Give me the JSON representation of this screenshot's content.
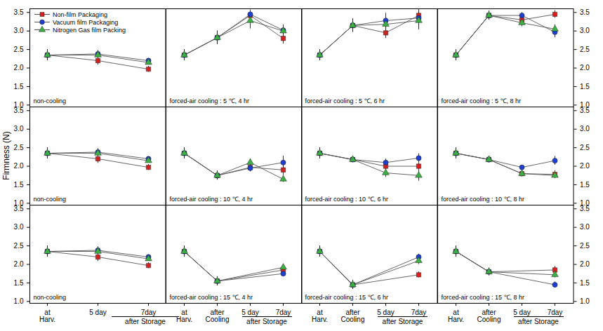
{
  "chart_data": [
    {
      "type": "line",
      "title": "non-cooling",
      "legend": "top-left",
      "tick_labels": "y",
      "x": [
        "at\nHarv.",
        "5 day",
        "7day"
      ],
      "ylim": [
        0.95,
        3.6
      ],
      "yticks": [
        {
          "value": 1,
          "label": "1.0"
        },
        1.5,
        {
          "value": 2,
          "label": "2.0"
        },
        2.5,
        {
          "value": 3,
          "label": "3.0"
        },
        3.5
      ],
      "series": [
        {
          "name": "Non-film Packaging",
          "color": "#d62020",
          "marker": "square",
          "values": [
            2.35,
            2.2,
            1.97
          ],
          "errors": [
            0.15,
            0.12,
            0.08
          ]
        },
        {
          "name": "Vacuum film Packaging",
          "color": "#1f3fd0",
          "marker": "circle",
          "values": [
            2.35,
            2.38,
            2.2
          ],
          "errors": [
            0.15,
            0.1,
            0.06
          ]
        },
        {
          "name": "Nitrogen Gas film Packing",
          "color": "#3cb043",
          "marker": "triangle",
          "values": [
            2.35,
            2.35,
            2.15
          ],
          "errors": [
            0.15,
            0.1,
            0.06
          ]
        }
      ]
    },
    {
      "type": "line",
      "title": "forced-air cooling : 5 ℃, 4 hr",
      "tick_labels": false,
      "x": [
        "at\nHarv.",
        "after\nCooling",
        "5 day",
        "7day"
      ],
      "ylim": [
        0.95,
        3.6
      ],
      "yticks": [
        {
          "value": 1,
          "label": "1.0"
        },
        1.5,
        {
          "value": 2,
          "label": "2.0"
        },
        2.5,
        {
          "value": 3,
          "label": "3.0"
        },
        3.5
      ],
      "series": [
        {
          "name": "Non-film Packaging",
          "color": "#d62020",
          "marker": "square",
          "values": [
            2.35,
            2.82,
            3.42,
            2.8
          ],
          "errors": [
            0.15,
            0.18,
            0.1,
            0.15
          ]
        },
        {
          "name": "Vacuum film Packaging",
          "color": "#1f3fd0",
          "marker": "circle",
          "values": [
            2.35,
            2.82,
            3.45,
            3.02
          ],
          "errors": [
            0.15,
            0.18,
            0.12,
            0.15
          ]
        },
        {
          "name": "Nitrogen Gas film Packing",
          "color": "#3cb043",
          "marker": "triangle",
          "values": [
            2.35,
            2.82,
            3.28,
            3.0
          ],
          "errors": [
            0.15,
            0.18,
            0.22,
            0.12
          ]
        }
      ]
    },
    {
      "type": "line",
      "title": "forced-air cooling : 5 ℃, 6 hr",
      "tick_labels": false,
      "x": [
        "at\nHarv.",
        "after\nCooling",
        "5 day",
        "7day"
      ],
      "ylim": [
        0.95,
        3.6
      ],
      "yticks": [
        {
          "value": 1,
          "label": "1.0"
        },
        1.5,
        {
          "value": 2,
          "label": "2.0"
        },
        2.5,
        {
          "value": 3,
          "label": "3.0"
        },
        3.5
      ],
      "series": [
        {
          "name": "Non-film Packaging",
          "color": "#d62020",
          "marker": "square",
          "values": [
            2.35,
            3.15,
            2.95,
            3.42
          ],
          "errors": [
            0.15,
            0.18,
            0.15,
            0.12
          ]
        },
        {
          "name": "Vacuum film Packaging",
          "color": "#1f3fd0",
          "marker": "circle",
          "values": [
            2.35,
            3.15,
            3.28,
            3.35
          ],
          "errors": [
            0.15,
            0.18,
            0.2,
            0.25
          ]
        },
        {
          "name": "Nitrogen Gas film Packing",
          "color": "#3cb043",
          "marker": "triangle",
          "values": [
            2.35,
            3.15,
            3.18,
            3.28
          ],
          "errors": [
            0.15,
            0.18,
            0.2,
            0.25
          ]
        }
      ]
    },
    {
      "type": "line",
      "title": "forced-air cooling : 5 ℃, 8 hr",
      "tick_labels": "y",
      "x": [
        "at\nHarv.",
        "after\nCooling",
        "5 day",
        "7day"
      ],
      "ylim": [
        0.95,
        3.6
      ],
      "yticks": [
        {
          "value": 1,
          "label": "1.0"
        },
        1.5,
        {
          "value": 2,
          "label": "2.0"
        },
        2.5,
        {
          "value": 3,
          "label": "3.0"
        },
        3.5
      ],
      "series": [
        {
          "name": "Non-film Packaging",
          "color": "#d62020",
          "marker": "square",
          "values": [
            2.35,
            3.42,
            3.3,
            3.45
          ],
          "errors": [
            0.15,
            0.12,
            0.12,
            0.1
          ]
        },
        {
          "name": "Vacuum film Packaging",
          "color": "#1f3fd0",
          "marker": "circle",
          "values": [
            2.35,
            3.42,
            3.42,
            2.97
          ],
          "errors": [
            0.15,
            0.12,
            0.08,
            0.15
          ]
        },
        {
          "name": "Nitrogen Gas film Packing",
          "color": "#3cb043",
          "marker": "triangle",
          "values": [
            2.35,
            3.42,
            3.22,
            3.05
          ],
          "errors": [
            0.15,
            0.12,
            0.1,
            0.12
          ]
        }
      ]
    },
    {
      "type": "line",
      "title": "non-cooling",
      "ylabel": "Firmness (N)",
      "tick_labels": "y",
      "x": [
        "at\nHarv.",
        "5 day",
        "7day"
      ],
      "ylim": [
        0.95,
        3.6
      ],
      "yticks": [
        {
          "value": 1,
          "label": "1.0"
        },
        1.5,
        {
          "value": 2,
          "label": "2.0"
        },
        2.5,
        {
          "value": 3,
          "label": "3.0"
        },
        3.5
      ],
      "series": [
        {
          "name": "Non-film Packaging",
          "color": "#d62020",
          "marker": "square",
          "values": [
            2.35,
            2.2,
            1.97
          ],
          "errors": [
            0.15,
            0.12,
            0.08
          ]
        },
        {
          "name": "Vacuum film Packaging",
          "color": "#1f3fd0",
          "marker": "circle",
          "values": [
            2.35,
            2.38,
            2.2
          ],
          "errors": [
            0.15,
            0.1,
            0.06
          ]
        },
        {
          "name": "Nitrogen Gas film Packing",
          "color": "#3cb043",
          "marker": "triangle",
          "values": [
            2.35,
            2.35,
            2.15
          ],
          "errors": [
            0.15,
            0.1,
            0.06
          ]
        }
      ]
    },
    {
      "type": "line",
      "title": "forced-air cooling : 10 ℃, 4 hr",
      "tick_labels": false,
      "x": [
        "at\nHarv.",
        "after\nCooling",
        "5 day",
        "7day"
      ],
      "ylim": [
        0.95,
        3.6
      ],
      "yticks": [
        {
          "value": 1,
          "label": "1.0"
        },
        1.5,
        {
          "value": 2,
          "label": "2.0"
        },
        2.5,
        {
          "value": 3,
          "label": "3.0"
        },
        3.5
      ],
      "series": [
        {
          "name": "Non-film Packaging",
          "color": "#d62020",
          "marker": "square",
          "values": [
            2.35,
            1.75,
            1.97,
            1.9
          ],
          "errors": [
            0.15,
            0.12,
            0.1,
            0.15
          ]
        },
        {
          "name": "Vacuum film Packaging",
          "color": "#1f3fd0",
          "marker": "circle",
          "values": [
            2.35,
            1.75,
            1.95,
            2.1
          ],
          "errors": [
            0.15,
            0.12,
            0.1,
            0.18
          ]
        },
        {
          "name": "Nitrogen Gas film Packing",
          "color": "#3cb043",
          "marker": "triangle",
          "values": [
            2.35,
            1.75,
            2.1,
            1.65
          ],
          "errors": [
            0.15,
            0.12,
            0.1,
            0.08
          ]
        }
      ]
    },
    {
      "type": "line",
      "title": "forced-air cooling : 10 ℃, 6 hr",
      "tick_labels": false,
      "x": [
        "at\nHarv.",
        "after\nCooling",
        "5 day",
        "7day"
      ],
      "ylim": [
        0.95,
        3.6
      ],
      "yticks": [
        {
          "value": 1,
          "label": "1.0"
        },
        1.5,
        {
          "value": 2,
          "label": "2.0"
        },
        2.5,
        {
          "value": 3,
          "label": "3.0"
        },
        3.5
      ],
      "series": [
        {
          "name": "Non-film Packaging",
          "color": "#d62020",
          "marker": "square",
          "values": [
            2.35,
            2.18,
            2.0,
            2.0
          ],
          "errors": [
            0.15,
            0.05,
            0.12,
            0.1
          ]
        },
        {
          "name": "Vacuum film Packaging",
          "color": "#1f3fd0",
          "marker": "circle",
          "values": [
            2.35,
            2.18,
            2.1,
            2.22
          ],
          "errors": [
            0.15,
            0.05,
            0.1,
            0.12
          ]
        },
        {
          "name": "Nitrogen Gas film Packing",
          "color": "#3cb043",
          "marker": "triangle",
          "values": [
            2.35,
            2.18,
            1.82,
            1.75
          ],
          "errors": [
            0.15,
            0.05,
            0.12,
            0.15
          ]
        }
      ]
    },
    {
      "type": "line",
      "title": "forced-air cooling : 10 ℃, 8 hr",
      "tick_labels": "y",
      "x": [
        "at\nHarv.",
        "after\nCooling",
        "5 day",
        "7day"
      ],
      "ylim": [
        0.95,
        3.6
      ],
      "yticks": [
        {
          "value": 1,
          "label": "1.0"
        },
        1.5,
        {
          "value": 2,
          "label": "2.0"
        },
        2.5,
        {
          "value": 3,
          "label": "3.0"
        },
        3.5
      ],
      "series": [
        {
          "name": "Non-film Packaging",
          "color": "#d62020",
          "marker": "square",
          "values": [
            2.35,
            2.18,
            1.8,
            1.78
          ],
          "errors": [
            0.15,
            0.08,
            0.08,
            0.1
          ]
        },
        {
          "name": "Vacuum film Packaging",
          "color": "#1f3fd0",
          "marker": "circle",
          "values": [
            2.35,
            2.18,
            1.97,
            2.15
          ],
          "errors": [
            0.15,
            0.08,
            0.05,
            0.12
          ]
        },
        {
          "name": "Nitrogen Gas film Packing",
          "color": "#3cb043",
          "marker": "triangle",
          "values": [
            2.35,
            2.18,
            1.8,
            1.75
          ],
          "errors": [
            0.15,
            0.08,
            0.08,
            0.08
          ]
        }
      ]
    },
    {
      "type": "line",
      "title": "non-cooling",
      "xlabel": "after Storage",
      "tick_labels": true,
      "x": [
        "at\nHarv.",
        "5 day",
        "7day"
      ],
      "ylim": [
        0.95,
        3.6
      ],
      "yticks": [
        {
          "value": 1,
          "label": "1.0"
        },
        1.5,
        {
          "value": 2,
          "label": "2.0"
        },
        2.5,
        {
          "value": 3,
          "label": "3.0"
        },
        3.5
      ],
      "series": [
        {
          "name": "Non-film Packaging",
          "color": "#d62020",
          "marker": "square",
          "values": [
            2.35,
            2.2,
            1.97
          ],
          "errors": [
            0.15,
            0.12,
            0.08
          ]
        },
        {
          "name": "Vacuum film Packaging",
          "color": "#1f3fd0",
          "marker": "circle",
          "values": [
            2.35,
            2.38,
            2.2
          ],
          "errors": [
            0.15,
            0.1,
            0.06
          ]
        },
        {
          "name": "Nitrogen Gas film Packing",
          "color": "#3cb043",
          "marker": "triangle",
          "values": [
            2.35,
            2.35,
            2.15
          ],
          "errors": [
            0.15,
            0.1,
            0.06
          ]
        }
      ]
    },
    {
      "type": "line",
      "title": "forced-air cooling : 15 ℃, 4 hr",
      "xlabel": "after Storage",
      "tick_labels": "x",
      "x": [
        "at\nHarv.",
        "after\nCooling",
        "5 day",
        "7day"
      ],
      "ylim": [
        0.95,
        3.6
      ],
      "yticks": [
        {
          "value": 1,
          "label": "1.0"
        },
        1.5,
        {
          "value": 2,
          "label": "2.0"
        },
        2.5,
        {
          "value": 3,
          "label": "3.0"
        },
        3.5
      ],
      "series": [
        {
          "name": "Non-film Packaging",
          "color": "#d62020",
          "marker": "square",
          "values": [
            2.35,
            1.55,
            null,
            1.85
          ],
          "errors": [
            0.15,
            0.12,
            null,
            0.08
          ]
        },
        {
          "name": "Vacuum film Packaging",
          "color": "#1f3fd0",
          "marker": "circle",
          "values": [
            2.35,
            1.55,
            null,
            1.75
          ],
          "errors": [
            0.15,
            0.12,
            null,
            0.08
          ]
        },
        {
          "name": "Nitrogen Gas film Packing",
          "color": "#3cb043",
          "marker": "triangle",
          "values": [
            2.35,
            1.55,
            null,
            1.92
          ],
          "errors": [
            0.15,
            0.12,
            null,
            0.08
          ]
        }
      ]
    },
    {
      "type": "line",
      "title": "forced-air cooling : 15 ℃, 6 hr",
      "xlabel": "after Storage",
      "tick_labels": "x",
      "x": [
        "at\nHarv.",
        "after\nCooling",
        "5 day",
        "7day"
      ],
      "ylim": [
        0.95,
        3.6
      ],
      "yticks": [
        {
          "value": 1,
          "label": "1.0"
        },
        1.5,
        {
          "value": 2,
          "label": "2.0"
        },
        2.5,
        {
          "value": 3,
          "label": "3.0"
        },
        3.5
      ],
      "series": [
        {
          "name": "Non-film Packaging",
          "color": "#d62020",
          "marker": "square",
          "values": [
            2.35,
            1.45,
            null,
            1.72
          ],
          "errors": [
            0.15,
            0.12,
            null,
            0.08
          ]
        },
        {
          "name": "Vacuum film Packaging",
          "color": "#1f3fd0",
          "marker": "circle",
          "values": [
            2.35,
            1.45,
            null,
            2.2
          ],
          "errors": [
            0.15,
            0.12,
            null,
            0.08
          ]
        },
        {
          "name": "Nitrogen Gas film Packing",
          "color": "#3cb043",
          "marker": "triangle",
          "values": [
            2.35,
            1.45,
            null,
            2.1
          ],
          "errors": [
            0.15,
            0.12,
            null,
            0.1
          ]
        }
      ]
    },
    {
      "type": "line",
      "title": "forced-air cooling : 15 ℃, 8 hr",
      "xlabel": "after Storage",
      "tick_labels": true,
      "x": [
        "at\nHarv.",
        "after\nCooling",
        "5 day",
        "7day"
      ],
      "ylim": [
        0.95,
        3.6
      ],
      "yticks": [
        {
          "value": 1,
          "label": "1.0"
        },
        1.5,
        {
          "value": 2,
          "label": "2.0"
        },
        2.5,
        {
          "value": 3,
          "label": "3.0"
        },
        3.5
      ],
      "series": [
        {
          "name": "Non-film Packaging",
          "color": "#d62020",
          "marker": "square",
          "values": [
            2.35,
            1.8,
            null,
            1.85
          ],
          "errors": [
            0.15,
            0.1,
            null,
            0.1
          ]
        },
        {
          "name": "Vacuum film Packaging",
          "color": "#1f3fd0",
          "marker": "circle",
          "values": [
            2.35,
            1.8,
            null,
            1.45
          ],
          "errors": [
            0.15,
            0.1,
            null,
            0.08
          ]
        },
        {
          "name": "Nitrogen Gas film Packing",
          "color": "#3cb043",
          "marker": "triangle",
          "values": [
            2.35,
            1.8,
            null,
            1.72
          ],
          "errors": [
            0.15,
            0.1,
            null,
            0.08
          ]
        }
      ]
    }
  ]
}
